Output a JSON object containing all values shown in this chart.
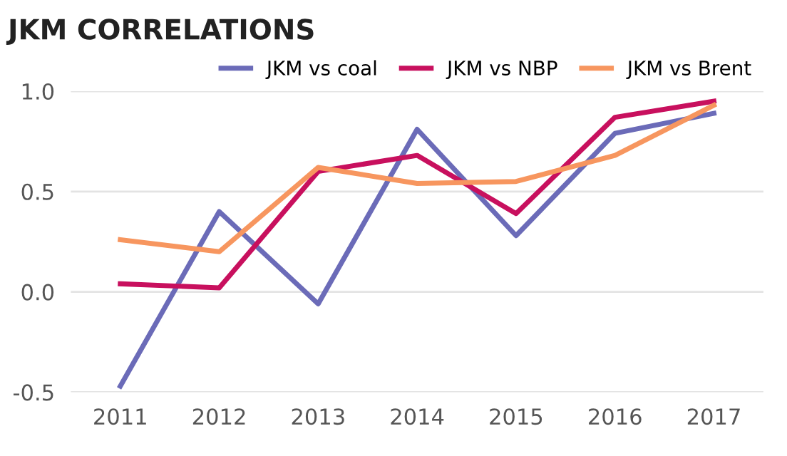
{
  "chart_data": {
    "type": "line",
    "title": "JKM CORRELATIONS",
    "categories": [
      "2011",
      "2012",
      "2013",
      "2014",
      "2015",
      "2016",
      "2017"
    ],
    "series": [
      {
        "name": "JKM vs coal",
        "color": "#6b6bb8",
        "values": [
          -0.47,
          0.4,
          -0.06,
          0.81,
          0.28,
          0.79,
          0.89
        ]
      },
      {
        "name": "JKM vs NBP",
        "color": "#c8105e",
        "values": [
          0.04,
          0.02,
          0.6,
          0.68,
          0.39,
          0.87,
          0.95
        ]
      },
      {
        "name": "JKM vs Brent",
        "color": "#f7965f",
        "values": [
          0.26,
          0.2,
          0.62,
          0.54,
          0.55,
          0.68,
          0.93
        ]
      }
    ],
    "ylim": [
      -0.5,
      1.0
    ],
    "yticks": [
      {
        "value": -0.5,
        "label": "-0.5"
      },
      {
        "value": 0,
        "label": "0.0"
      },
      {
        "value": 0.5,
        "label": "0.5"
      },
      {
        "value": 1.0,
        "label": "1.0"
      }
    ],
    "grid": "y",
    "legend": "top right",
    "marker": "none",
    "line_style": "solid"
  }
}
